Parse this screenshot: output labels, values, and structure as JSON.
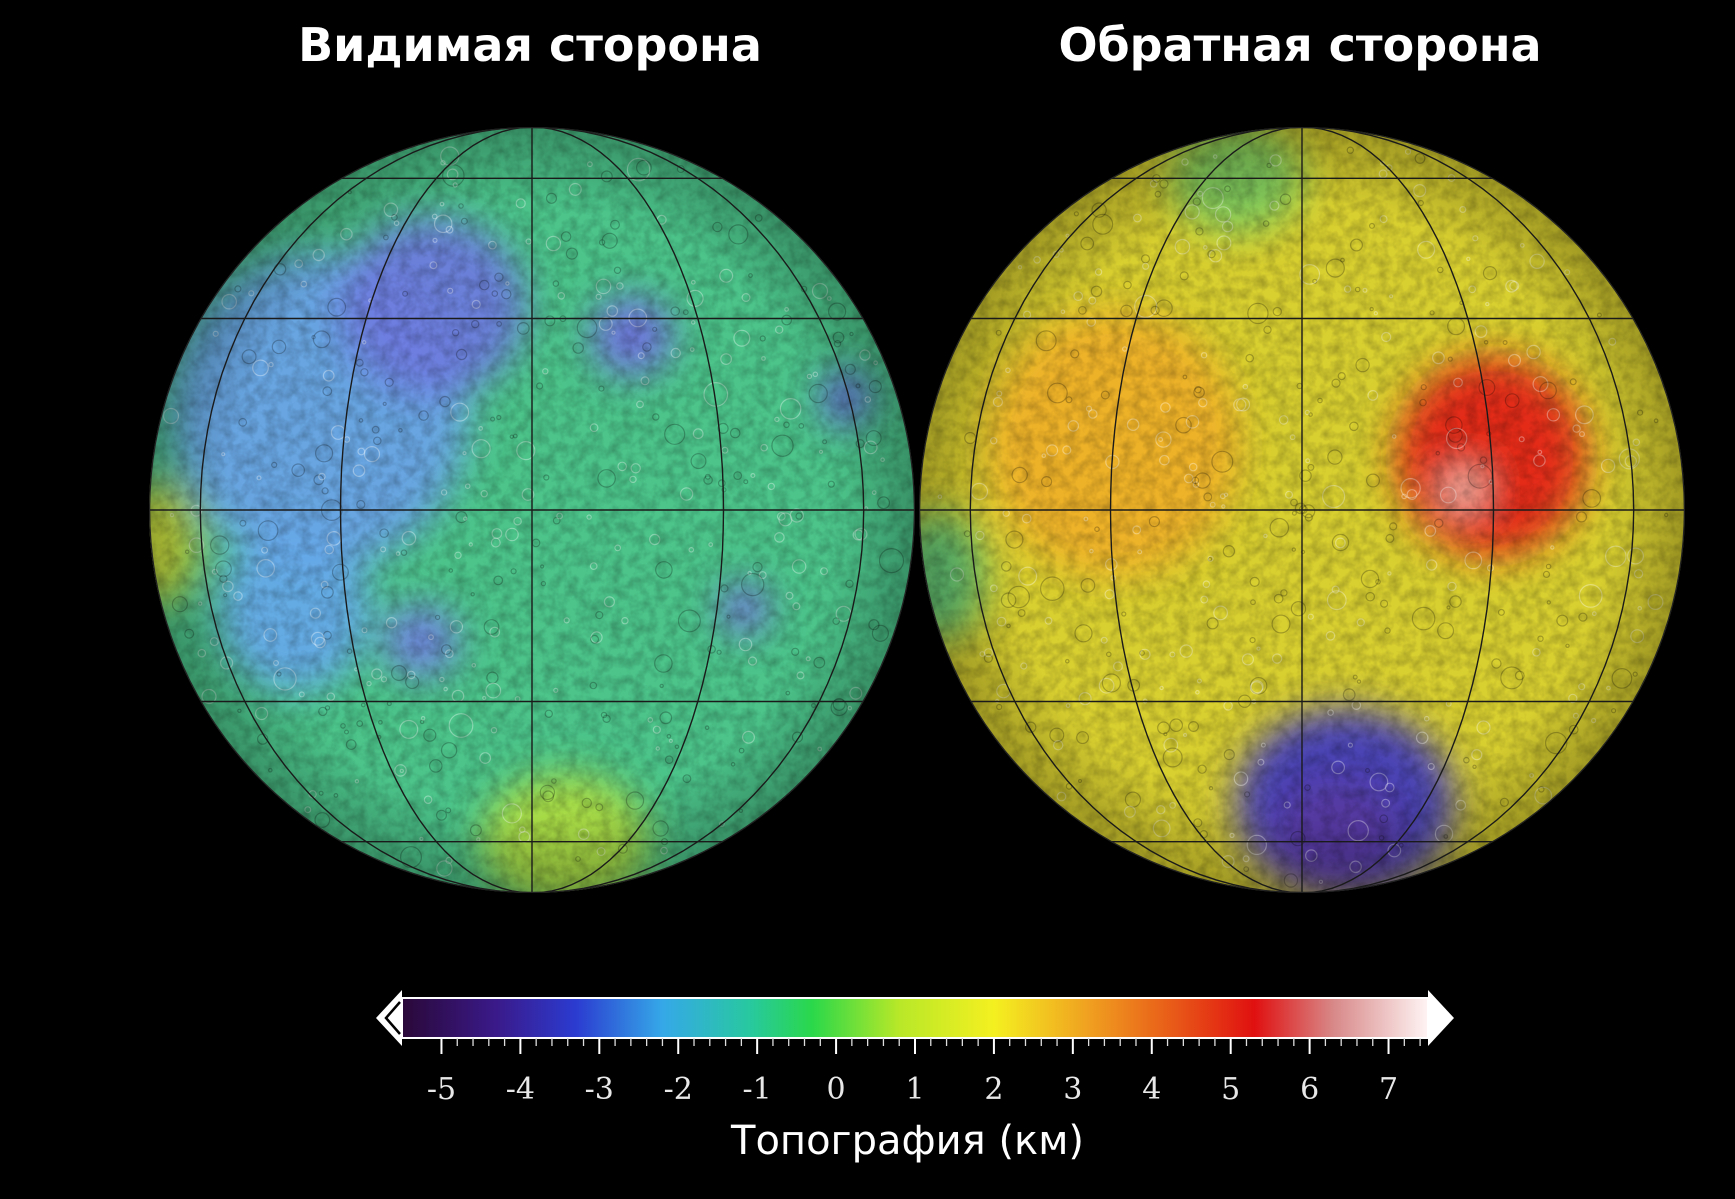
{
  "titles": {
    "near_side": "Видимая сторона",
    "far_side": "Обратная сторона"
  },
  "colorbar": {
    "label": "Топография (км)",
    "ticks": [
      "-5",
      "-4",
      "-3",
      "-2",
      "-1",
      "0",
      "1",
      "2",
      "3",
      "4",
      "5",
      "6",
      "7"
    ],
    "range_km": [
      -5.5,
      7.5
    ],
    "stops": [
      {
        "value": -5.5,
        "color": "#2a0838"
      },
      {
        "value": -4.3,
        "color": "#3a1a8a"
      },
      {
        "value": -3.3,
        "color": "#2b3bd0"
      },
      {
        "value": -2.2,
        "color": "#35a8e8"
      },
      {
        "value": -1.1,
        "color": "#28c8a0"
      },
      {
        "value": -0.3,
        "color": "#2ad84a"
      },
      {
        "value": 0.8,
        "color": "#b8e828"
      },
      {
        "value": 2.0,
        "color": "#f4f020"
      },
      {
        "value": 3.2,
        "color": "#f0a020"
      },
      {
        "value": 4.3,
        "color": "#e85818"
      },
      {
        "value": 5.3,
        "color": "#e01010"
      },
      {
        "value": 6.3,
        "color": "#d88888"
      },
      {
        "value": 7.5,
        "color": "#fff4f4"
      }
    ]
  },
  "maps": [
    {
      "id": "near",
      "base_color": "#4cc48a",
      "regions": [
        {
          "label": "highlands-edge",
          "color": "#d8e238",
          "lon": -80,
          "lat": -5,
          "r": 0.16
        },
        {
          "label": "maria-west",
          "color": "#6aa2e8",
          "lon": -35,
          "lat": 15,
          "r": 0.42
        },
        {
          "label": "mare-imbrium",
          "color": "#6e7ae0",
          "lon": -18,
          "lat": 32,
          "r": 0.25
        },
        {
          "label": "mare-serenitatis",
          "color": "#7070e0",
          "lon": 17,
          "lat": 27,
          "r": 0.11
        },
        {
          "label": "mare-crisium",
          "color": "#6464d8",
          "lon": 59,
          "lat": 17,
          "r": 0.08
        },
        {
          "label": "procellarum-south",
          "color": "#66a8ea",
          "lon": -40,
          "lat": -15,
          "r": 0.22
        },
        {
          "label": "mare-nubium",
          "color": "#7080e0",
          "lon": -18,
          "lat": -20,
          "r": 0.1
        },
        {
          "label": "mare-nectaris",
          "color": "#7070d8",
          "lon": 35,
          "lat": -15,
          "r": 0.07
        },
        {
          "label": "south-highlands",
          "color": "#b0dc40",
          "lon": 10,
          "lat": -60,
          "r": 0.22
        }
      ]
    },
    {
      "id": "far",
      "base_color": "#d8cf30",
      "regions": [
        {
          "label": "highlands-west",
          "color": "#f0b028",
          "lon": -30,
          "lat": 10,
          "r": 0.35
        },
        {
          "label": "korolev-high",
          "color": "#e42018",
          "lon": 30,
          "lat": 8,
          "r": 0.26
        },
        {
          "label": "peak-white",
          "color": "#f2d8d0",
          "lon": 25,
          "lat": 3,
          "r": 0.05
        },
        {
          "label": "sp-aitken-basin",
          "color": "#3c38c0",
          "lon": 10,
          "lat": -50,
          "r": 0.29
        },
        {
          "label": "sp-aitken-core",
          "color": "#5838a0",
          "lon": 10,
          "lat": -58,
          "r": 0.17
        },
        {
          "label": "west-limb",
          "color": "#5cc87c",
          "lon": -75,
          "lat": -10,
          "r": 0.17
        },
        {
          "label": "north-limb",
          "color": "#78c860",
          "lon": -20,
          "lat": 60,
          "r": 0.18
        }
      ]
    }
  ]
}
